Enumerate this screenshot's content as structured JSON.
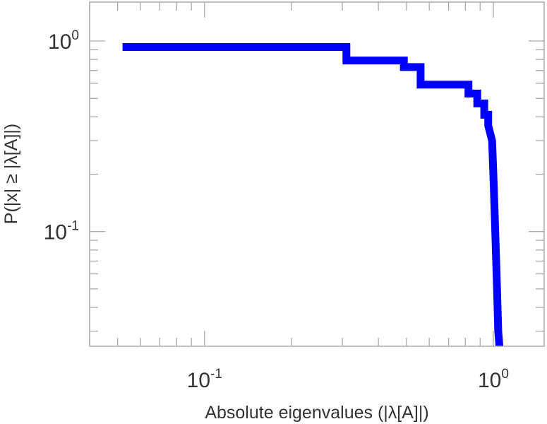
{
  "chart_data": {
    "type": "line",
    "subtype": "step",
    "x_scale": "log",
    "y_scale": "log",
    "xlabel": "Absolute eigenvalues (|λ[A]|)",
    "ylabel": "P(|x| ≥ |λ[A]|)",
    "xlim": [
      0.04,
      1.5
    ],
    "ylim": [
      0.025,
      1.6
    ],
    "grid": false,
    "x_ticks": [
      {
        "value": 0.1,
        "base": "10",
        "exp": "-1"
      },
      {
        "value": 1,
        "base": "10",
        "exp": "0"
      }
    ],
    "y_ticks": [
      {
        "value": 0.1,
        "base": "10",
        "exp": "-1"
      },
      {
        "value": 1,
        "base": "10",
        "exp": "0"
      }
    ],
    "series": [
      {
        "color": "#0000ff",
        "x": [
          0.052,
          0.31,
          0.31,
          0.49,
          0.49,
          0.56,
          0.56,
          0.82,
          0.82,
          0.88,
          0.88,
          0.93,
          0.93,
          0.96,
          0.96,
          0.99,
          1.0,
          1.01,
          1.02,
          1.03,
          1.04,
          1.05
        ],
        "y": [
          0.93,
          0.93,
          0.79,
          0.79,
          0.73,
          0.73,
          0.59,
          0.59,
          0.53,
          0.53,
          0.47,
          0.47,
          0.41,
          0.41,
          0.36,
          0.3,
          0.2,
          0.13,
          0.08,
          0.05,
          0.03,
          0.025
        ]
      }
    ]
  }
}
